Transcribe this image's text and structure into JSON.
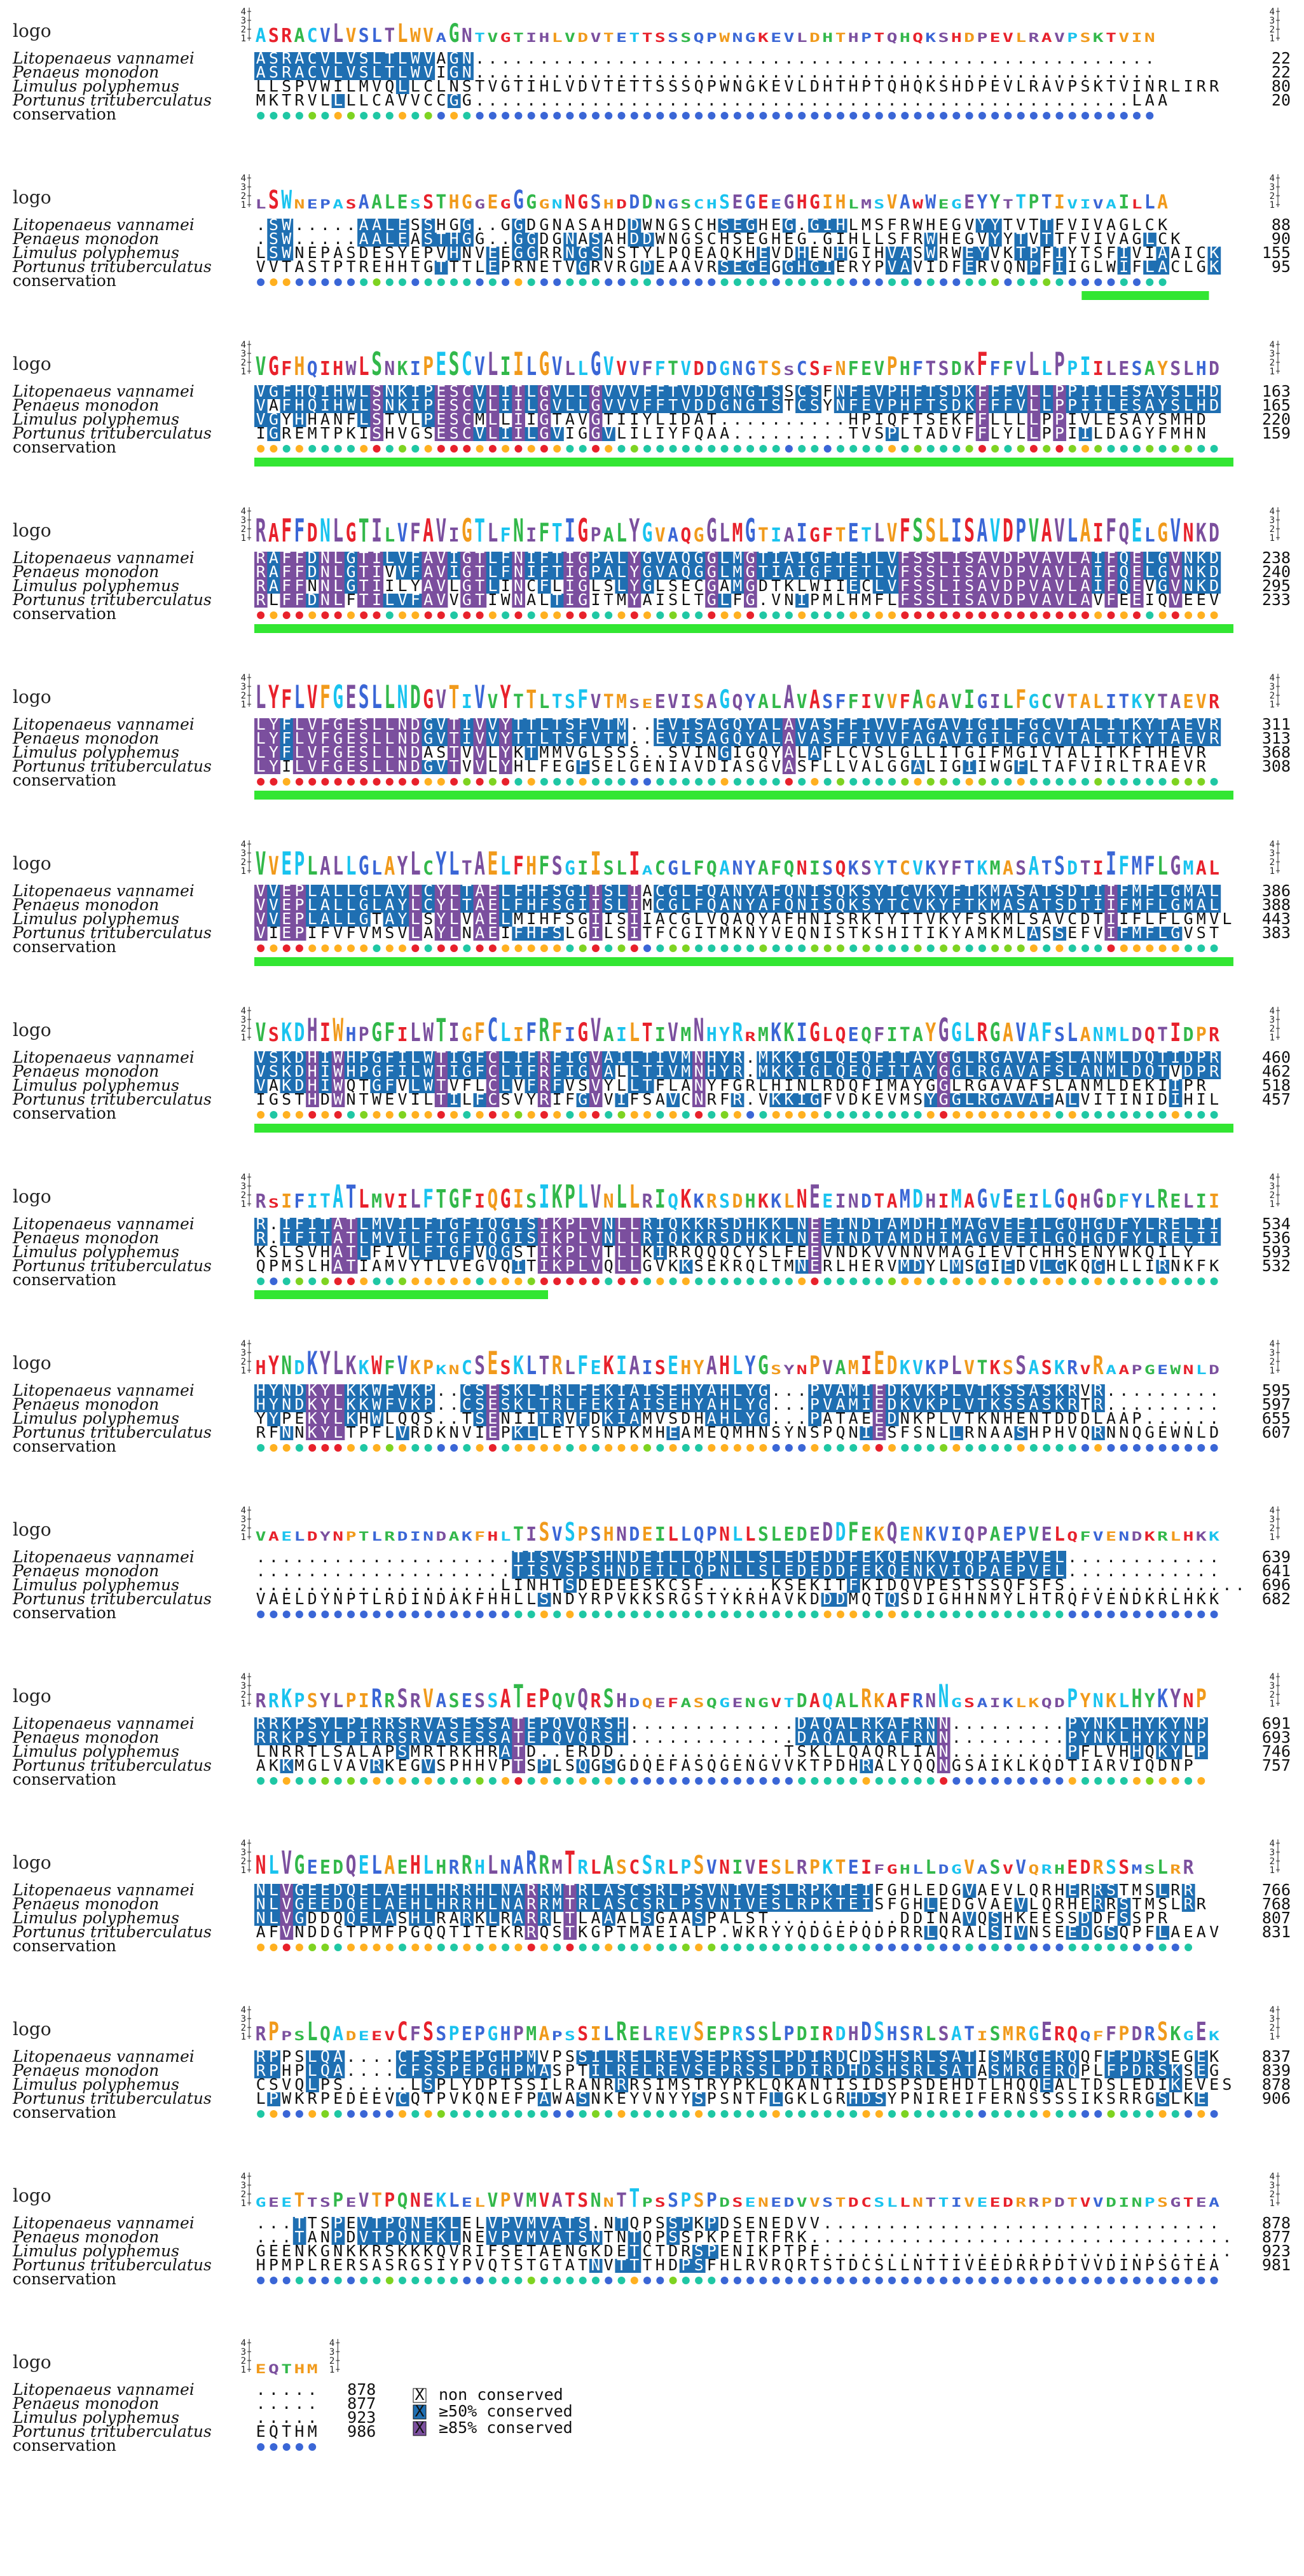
{
  "row_labels": {
    "logo": "logo",
    "conservation": "conservation",
    "species": [
      "Litopenaeus vannamei",
      "Penaeus monodon",
      "Limulus polyphemus",
      "Portunus trituberculatus"
    ]
  },
  "logo_ticks": [
    "4",
    "3",
    "2",
    "1"
  ],
  "legend": [
    {
      "symbol": "X",
      "label": "non conserved"
    },
    {
      "symbol": "X",
      "label": "≥50% conserved"
    },
    {
      "symbol": "X",
      "label": "≥85% conserved"
    }
  ],
  "colors": {
    "hi": "#7b4f9e",
    "mid": "#1f6fb2",
    "cons_dots": [
      "#e8212b",
      "#ff5b3a",
      "#ffb020",
      "#7ed321",
      "#1fc7a4",
      "#19c3ef",
      "#3a66d6",
      "#1f36c9"
    ],
    "helix": "#32e632",
    "logo_letters": [
      "#e8212b",
      "#3a66d6",
      "#32b84a",
      "#f19a1b",
      "#7b4f9e",
      "#19c3ef"
    ]
  },
  "blocks": [
    {
      "seqs": [
        "ASRACVLVSLTLWVAGN.....................................................",
        "ASRACVLVSLTLWVIGN.....................................................",
        "LLSPVWILMVQLLCLNSTVGTIHLVDVTETTSSSQPWNGKEVLDHTHPTQHQKSHDPEVLRAVPSKTVINRLIRR",
        "MKTRVLLLLCAVVCCGG...................................................LAA"
      ],
      "nums": [
        "22",
        "22",
        "80",
        "20"
      ],
      "helices": []
    },
    {
      "seqs": [
        ".SW.....AALESSHGG..GGDGNASAHDDWNGSCHSEGHEG.GIHLMSFRWHEGVYYTVTTFVIVAGLCK",
        ".SW.....AALEASTHGG..GGDGNASAHDDWNGSCHSEGHEG.GIHLLSFRWHEGVYYTVTTFVIVAGLCK",
        "LSWNEPASDESYEPVHNVEEGGRRNGSNSTYLPQEAQKHEVDHENHGIHVASWRWEYVKTPFIYTSFIVIAAICK",
        "VVTASTPTREHHTGTTTLEPRNETVGRVRGDEAAVRSEGEGGHGIERYPVAVIDFERVQNPFIIGLWIFLACLGK"
      ],
      "nums": [
        "88",
        "90",
        "155",
        "95"
      ],
      "helices": [
        [
          0.845,
          0.975
        ]
      ]
    },
    {
      "seqs": [
        "VGFHQIHWLSNKIPESCVLIILGVLLGVVVFFTVDDGNGTSSCSFNFEVPHFTSDKFFFVLLPPIILESAYSLHD",
        "VAFHQIHWLSNKIPESCVLIILGVLLGVVVFFTVDDGNGTSTCSYNFEVPHFTSDKFFFVLLPPIILESAYSLHD",
        "VGYHHANFLSTVLPESCMLLIIGTAVGTIIYLIDAT..........HPIQFTSEKFFLLLLPPIVLESAYSMHD",
        "IGREMTPKISHVGSESCVLIILGVIGGVLILIYFQAA.........TVSPLTADVFFLYLLPPIILDAGYFMHN"
      ],
      "nums": [
        "163",
        "165",
        "220",
        "159"
      ],
      "helices": [
        [
          0.0,
          1.0
        ]
      ]
    },
    {
      "seqs": [
        "RAFFDNLGTILVFAVIGTLFNIFTIGPALYGVAQGGLMGTIAIGFTETLVFSSLISAVDPVAVLAIFQELGVNKD",
        "RAFFDNLGTIVVFAVIGTLFNIFTIGPALYGVAQGGLMGTIAIGFTETLVFSSLISAVDPVAVLAIFQELGVNKD",
        "RAFFNNLGTIILYAVLGTLINCFLIGLSLYGLSECGAMGDTKLWIIECLVFSSLISAVDPVAVLAIFQEVGVNKD",
        "RLFFDNLFTILVFAVVGTIWNALTIGITMYAISLTGLFG.VNIPMLHMFLFSSLISAVDPVAVLAVFEEIQVEEV"
      ],
      "nums": [
        "238",
        "240",
        "295",
        "233"
      ],
      "helices": [
        [
          0.0,
          1.0
        ]
      ]
    },
    {
      "seqs": [
        "LYFLVFGESLLNDGVTIVVYTTLTSFVTM..EVISAGQYALAVASFFIVVFAGAVIGILFGCVTALITKYTAEVR",
        "LYFLVFGESLLNDGVTIVVYTTLTSFVTM..EVISAGQYALAVASFFIVVFAGAVIGILFGCVTALITKYTAEVR",
        "LYFLVFGESLLNDASTVVLYKTMMVGLSSS..SVINGIGQYALAFLCVSLGLLITGIFMGIVTALITKFTHEVR",
        "LYILVFGESLLNDGVTVVLYHLFEGFSELGENIAVDIASGVASFLLVALGGALIGIIWGFLTAFVIRLTRAEVR"
      ],
      "nums": [
        "311",
        "313",
        "368",
        "308"
      ],
      "helices": [
        [
          0.0,
          1.0
        ]
      ]
    },
    {
      "seqs": [
        "VVEPLALLGLAYLCYLTAELFHFSGIISLIACGLFQANYAFQNISQKSYTCVKYFTKMASATSDTIIFMFLGMAL",
        "VVEPLALLGLAYLCYLTAELFHFSGIISLIMCGLFQANYAFQNISQKSYTCVKYFTKMASATSDTIIFMFLGMAL",
        "VVEPLALLGTAYLSYLVAELMIHFSGIISIIACGLVQAQYAFHNISRKTYTTVKYFSKMLSAVCDTIIFLFLGMVL",
        "VIEPIFVFVMSVLAYLNAEIFHFSLGILSITFCGITMKNYVEQNISTKSHITIKYAMKMLASSEFVIFMFLGVST"
      ],
      "nums": [
        "386",
        "388",
        "443",
        "383"
      ],
      "helices": [
        [
          0.0,
          1.0
        ]
      ]
    },
    {
      "seqs": [
        "VSKDHIWHPGFILWTIGFCLIFRFIGVAILTIVMNHYR.MKKIGLQEQFITAYGGLRGAVAFSLANMLDQTIDPR",
        "VSKDHIWHPGFILWTIGFCLIFRFIGVALLTIVMNHYR.MKKIGLQEQFITAYGGLRGAVAFSLANMLDQTVDPR",
        "VAKDHIWQTGFVLWTVFLCLVFRFVSVYLLTFLANYFGRLHINLRDQFIMAYGGLRGAVAFSLANMLDEKIIPR",
        "IGSTHDWNTWEVILTILFCSVYRIFGVVIFSAVCNRFR.VKKIGFVDKEVMSYGGLRGAVAFALVITINIDIHIL"
      ],
      "nums": [
        "460",
        "462",
        "518",
        "457"
      ],
      "helices": [
        [
          0.0,
          1.0
        ]
      ]
    },
    {
      "seqs": [
        "R.IFITATLMVILFTGFIQGISIKPLVNLLRIQKKRSDHKKLNEEINDTAMDHIMAGVEEILGQHGDFYLRELII",
        "R.IFITATLMVILFTGFIQGISIKPLVNLLRIQKKRSDHKKLNEEINDTAMDHIMAGVEEILGQHGDFYLRELII",
        "KSLSVHATLFIVLFTGFVQGSTIKPLVTLLKIRRQQQCYSLFEEVNDKVVNNVMAGIEVTCHHSENYWKQILY",
        "QPMSLHATIAMVYTLVEGVQITIKPLVQLLGVKKSEKRQLTMNERLHERVMDYLMSGIEDVLGKQGHLLIRNKFK"
      ],
      "nums": [
        "534",
        "536",
        "593",
        "532"
      ],
      "helices": [
        [
          0.0,
          0.3
        ]
      ]
    },
    {
      "seqs": [
        "HYNDKYLKKWFVKP..CSESKLTRLFEKIAISEHYAHLYG...PVAMIEDKVKPLVTKSSASKRVR.........",
        "HYNDKYLKKWFVKP..CSESKLTRLFEKIAISEHYAHLYG...PVAMIEDKVKPLVTKSSASKRTR.........",
        "YYPEKYLKHWLQQS..TSENIITRVFDKIAMVSDHAHLYG...PATAEEDNKPLVTKNHENTDDDLAAP......",
        "RFNNKYLTPFLVRDKNVIEPKLLETYSNPKMHEAMEQMHNSYNSPQNIESFSNLLRNAASHPHVQRNNQGEWNLD"
      ],
      "nums": [
        "595",
        "597",
        "655",
        "607"
      ],
      "helices": []
    },
    {
      "seqs": [
        "....................TISVSPSHNDEILLQPNLLSLEDEDDFEKQENKVIQPAEPVEL............",
        "....................TISVSPSHNDEILLQPNLLSLEDEDDFEKQENKVIQPAEPVEL............",
        "...................LINHTSDEDEESKCSF.....KSEKITFKIDQVPESTSSQFSFS..............",
        "VAELDYNPTLRDINDAKFHHLLSNDYRPVKKSRGSTYKRHAVKDDDMQTQSDIGHHNMYLHTRQFVENDKRLHKK"
      ],
      "nums": [
        "639",
        "641",
        "696",
        "682"
      ],
      "helices": []
    },
    {
      "seqs": [
        "RRKPSYLPIRRSRVASESSATEPQVQRSH.............DAQALRKAFRNN.........PYNKLHYKYNP",
        "RRKPSYLPIRRSRVASESSATEPQVQRSH.............DAQALRKAFRNN.........PYNKLHYKYNP",
        "LNRRTLSALAPSMRTRKHRATD..ERDD.............TSKLLQAQRLIAN.........PFLVHHQKYLP",
        "AKKMGLVAVRKEGVSPHHVPTSPLSQGSGDQEFASQGENGVVKTPDHRALYQQNGSAIKLKQDTIARVIQDNP"
      ],
      "nums": [
        "691",
        "693",
        "746",
        "757"
      ],
      "helices": []
    },
    {
      "seqs": [
        "NLVGEEDQELAEHLHRRHLNARRMTRLASCSRLPSVNIVESLRPKTEIFGHLEDGVAEVLQRHERRSTMSLRR",
        "NLVGEEDQELAEHLHRRHLNARRMTRLASCSRLPSVNIVESLRPKTEISFGHLEDGVAEVLQRHERRSTMSLRR",
        "NLVGDDQQELASHLRARKLRARRLTLAAALSGAASPALST..........DDINAVQSHKEESSDDFSSPR",
        "AFVNDDGTPMFPGQQTITEKRRQSTKGPTMAEIALP.WKRYYQDGEPQDPRRLQRALSIVNSEEDGSQPFLAEAV"
      ],
      "nums": [
        "766",
        "768",
        "807",
        "831"
      ],
      "helices": []
    },
    {
      "seqs": [
        "RPPSLQA....CFSSPEPGHPMVPSSILRELREVSEPRSSLPDIRDCDSHSRLSATISMRGERQQFFPDRSEGEK",
        "RPHPLQA....CFSSPEPGHPMASPTILRELREVSEPRSSLPDIRDHDSHSRLSATASMRGERQPLFPDRSKSEG",
        "CSVQLPS.....LSPLYDPTSSILRANRRRSIMSTRYPKLQKANTISIDSPSDEHDTLHQQEALTDSLEDIKEVES",
        "LPWKRPEDEEVCQTPVKQNEFPAWASNKEYVNYYSPSNTFLGKLGRHDSYPNIREIFERNSSSSIKSRRGSLKE"
      ],
      "nums": [
        "837",
        "839",
        "878",
        "906"
      ],
      "helices": []
    },
    {
      "seqs": [
        "...TTSPEVTPQNEKLELVPVMVATS.NTQPSSPKPDSENEDVV...............................",
        "...TANPDVTPQNEKLNEVPVMVATSNTNTQPSSPKPETRFRK.................................",
        "GEENKGNKKRSKKKQVRIFSETAENGKDETCTDRSPENIKPTPF................................",
        "HPMPLRERSASRGSIYPVQTSTGTATNVTTTHDPSFHLRVRQRTSTDCSLLNTTIVEEDRRPDTVVDINPSGTEA"
      ],
      "nums": [
        "878",
        "877",
        "923",
        "981"
      ],
      "helices": []
    },
    {
      "seqs": [
        ".....",
        ".....",
        ".....",
        "EQTHM"
      ],
      "nums": [
        "878",
        "877",
        "923",
        "986"
      ],
      "helices": []
    }
  ]
}
